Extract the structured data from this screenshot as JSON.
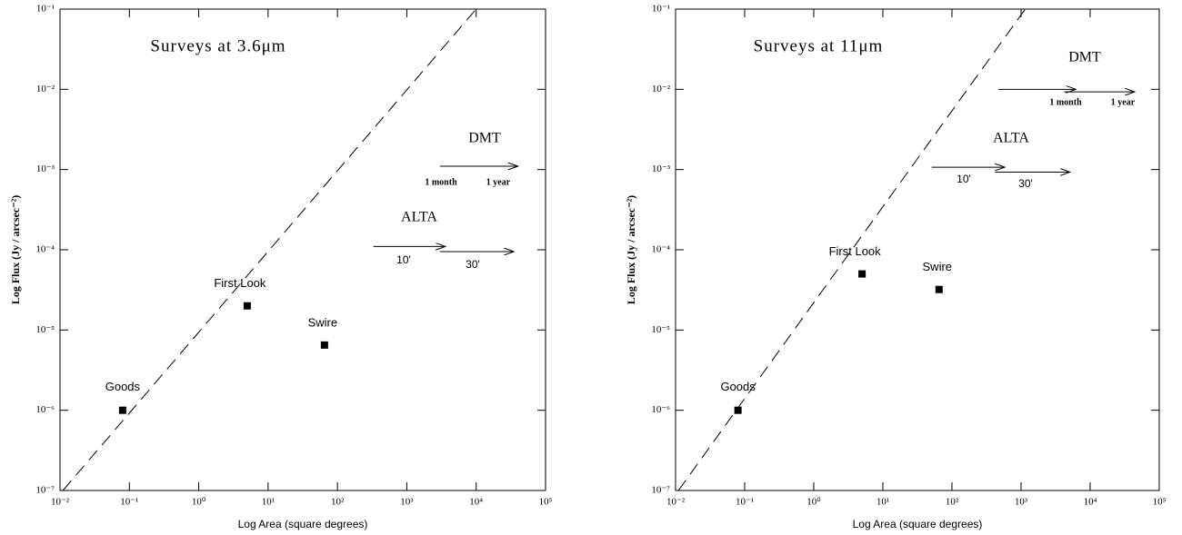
{
  "chart_data": [
    {
      "type": "scatter",
      "xlog": true,
      "ylog": true,
      "x_label": "Log Area (square degrees)",
      "y_label": "Log Flux (Jy / arcsec⁻²)",
      "xlim": [
        0.01,
        100000
      ],
      "ylim": [
        1e-07,
        0.1
      ],
      "xticks": [
        {
          "value": 0.01,
          "label": "10⁻²"
        },
        {
          "value": 0.1,
          "label": "10⁻¹"
        },
        {
          "value": 1,
          "label": "10⁰"
        },
        {
          "value": 10,
          "label": "10¹"
        },
        {
          "value": 100,
          "label": "10²"
        },
        {
          "value": 1000,
          "label": "10³"
        },
        {
          "value": 10000,
          "label": "10⁴"
        },
        {
          "value": 100000,
          "label": "10⁵"
        }
      ],
      "yticks": [
        {
          "value": 1e-07,
          "label": "10⁻⁷"
        },
        {
          "value": 1e-06,
          "label": "10⁻⁶"
        },
        {
          "value": 1e-05,
          "label": "10⁻⁵"
        },
        {
          "value": 0.0001,
          "label": "10⁻⁴"
        },
        {
          "value": 0.001,
          "label": "10⁻³"
        },
        {
          "value": 0.01,
          "label": "10⁻²"
        },
        {
          "value": 0.1,
          "label": "10⁻¹"
        }
      ],
      "labels": [
        "Goods",
        "First Look",
        "Swire"
      ],
      "x": [
        0.08,
        5,
        65
      ],
      "y": [
        1e-06,
        2e-05,
        6.5e-06
      ],
      "color": "#000000",
      "line": {
        "x": [
          0.011,
          10000
        ],
        "y": [
          1e-07,
          0.1
        ],
        "dashed": true
      },
      "arrows": [
        {
          "x": [
            3000,
            40000
          ],
          "y": 0.0011
        },
        {
          "x": [
            330,
            3600
          ],
          "y": 0.00011
        },
        {
          "x": [
            3000,
            35000
          ],
          "y": 9.5e-05
        }
      ],
      "annotations": [
        "Surveys at 3.6μm",
        "DMT",
        "1 month",
        "1 year",
        "ALTA",
        "10'",
        "30'"
      ]
    },
    {
      "type": "scatter",
      "xlog": true,
      "ylog": true,
      "x_label": "Log Area (square degrees)",
      "y_label": "Log Flux (Jy / arcsec⁻²)",
      "xlim": [
        0.01,
        100000
      ],
      "ylim": [
        1e-07,
        0.1
      ],
      "xticks": [
        {
          "value": 0.01,
          "label": "10⁻²"
        },
        {
          "value": 0.1,
          "label": "10⁻¹"
        },
        {
          "value": 1,
          "label": "10⁰"
        },
        {
          "value": 10,
          "label": "10¹"
        },
        {
          "value": 100,
          "label": "10²"
        },
        {
          "value": 1000,
          "label": "10³"
        },
        {
          "value": 10000,
          "label": "10⁴"
        },
        {
          "value": 100000,
          "label": "10⁵"
        }
      ],
      "yticks": [
        {
          "value": 1e-07,
          "label": "10⁻⁷"
        },
        {
          "value": 1e-06,
          "label": "10⁻⁶"
        },
        {
          "value": 1e-05,
          "label": "10⁻⁵"
        },
        {
          "value": 0.0001,
          "label": "10⁻⁴"
        },
        {
          "value": 0.001,
          "label": "10⁻³"
        },
        {
          "value": 0.01,
          "label": "10⁻²"
        },
        {
          "value": 0.1,
          "label": "10⁻¹"
        }
      ],
      "labels": [
        "Goods",
        "First Look",
        "Swire"
      ],
      "x": [
        0.08,
        5,
        65
      ],
      "y": [
        1e-06,
        5e-05,
        3.2e-05
      ],
      "color": "#000000",
      "line": {
        "x": [
          0.011,
          1150
        ],
        "y": [
          1e-07,
          0.1
        ],
        "dashed": true
      },
      "arrows": [
        {
          "x": [
            470,
            6200
          ],
          "y": 0.01
        },
        {
          "x": [
            4200,
            44000
          ],
          "y": 0.0093
        },
        {
          "x": [
            51,
            580
          ],
          "y": 0.00107
        },
        {
          "x": [
            420,
            5100
          ],
          "y": 0.00093
        }
      ],
      "annotations": [
        "Surveys at 11μm",
        "DMT",
        "1 month",
        "1 year",
        "ALTA",
        "10'",
        "30'"
      ]
    }
  ]
}
